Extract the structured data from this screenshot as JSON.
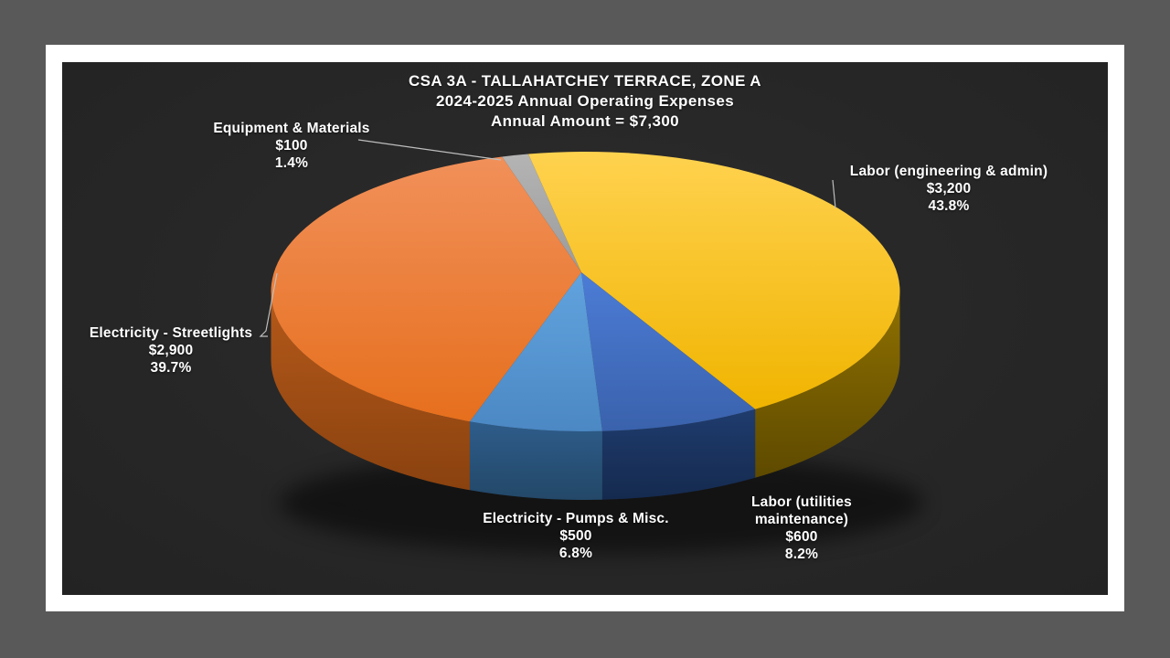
{
  "chart_data": {
    "type": "pie",
    "projection": "3d",
    "title": "CSA 3A - TALLAHATCHEY TERRACE, ZONE A",
    "subtitle": "2024-2025 Annual Operating Expenses",
    "annotation": "Annual Amount = $7,300",
    "total_value": 7300,
    "legend": "none",
    "label_style": "outside callouts with category, dollar amount and percent",
    "start_angle_deg": -15.4,
    "background_color": "#262626",
    "frame_color": "#ffffff",
    "outer_background_color": "#595959",
    "text_color": "#ffffff",
    "leader_line_color": "#bebebe",
    "slices": [
      {
        "key": "equipment_materials",
        "label": "Equipment & Materials",
        "label_display": "Equipment & Materials",
        "value": 100,
        "amount_label": "$100",
        "percent": 1.4,
        "percent_label": "1.4%",
        "color": "#A6A6A6",
        "color_light": "#B4B4B4",
        "color_dark": "#9B9B9B",
        "wall": "#7F7F7F",
        "wall_dark": "#6B6B6B"
      },
      {
        "key": "labor_engineering_admin",
        "label": "Labor (engineering & admin)",
        "label_display": "Labor (engineering & admin)",
        "value": 3200,
        "amount_label": "$3,200",
        "percent": 43.8,
        "percent_label": "43.8%",
        "color": "#FFC000",
        "color_light": "#FFD24F",
        "color_dark": "#F0B400",
        "wall": "#8F7000",
        "wall_dark": "#5E4A00"
      },
      {
        "key": "labor_utilities_maintenance",
        "label": "Labor (utilities maintenance)",
        "label_display": "Labor (utilities\nmaintenance)",
        "value": 600,
        "amount_label": "$600",
        "percent": 8.2,
        "percent_label": "8.2%",
        "color": "#4472C4",
        "color_light": "#4C7CD6",
        "color_dark": "#3A62AC",
        "wall": "#1F3C6E",
        "wall_dark": "#152A4E"
      },
      {
        "key": "electricity_pumps_misc",
        "label": "Electricity - Pumps & Misc.",
        "label_display": "Electricity - Pumps & Misc.",
        "value": 500,
        "amount_label": "$500",
        "percent": 6.8,
        "percent_label": "6.8%",
        "color": "#5B9BD5",
        "color_light": "#61A3DE",
        "color_dark": "#4B88C4",
        "wall": "#2E5C8A",
        "wall_dark": "#234868"
      },
      {
        "key": "electricity_streetlights",
        "label": "Electricity - Streetlights",
        "label_display": "Electricity - Streetlights",
        "value": 2900,
        "amount_label": "$2,900",
        "percent": 39.7,
        "percent_label": "39.7%",
        "color": "#ED7D31",
        "color_light": "#F1905A",
        "color_dark": "#E66F1D",
        "wall": "#B5591A",
        "wall_dark": "#8A420F"
      }
    ]
  }
}
